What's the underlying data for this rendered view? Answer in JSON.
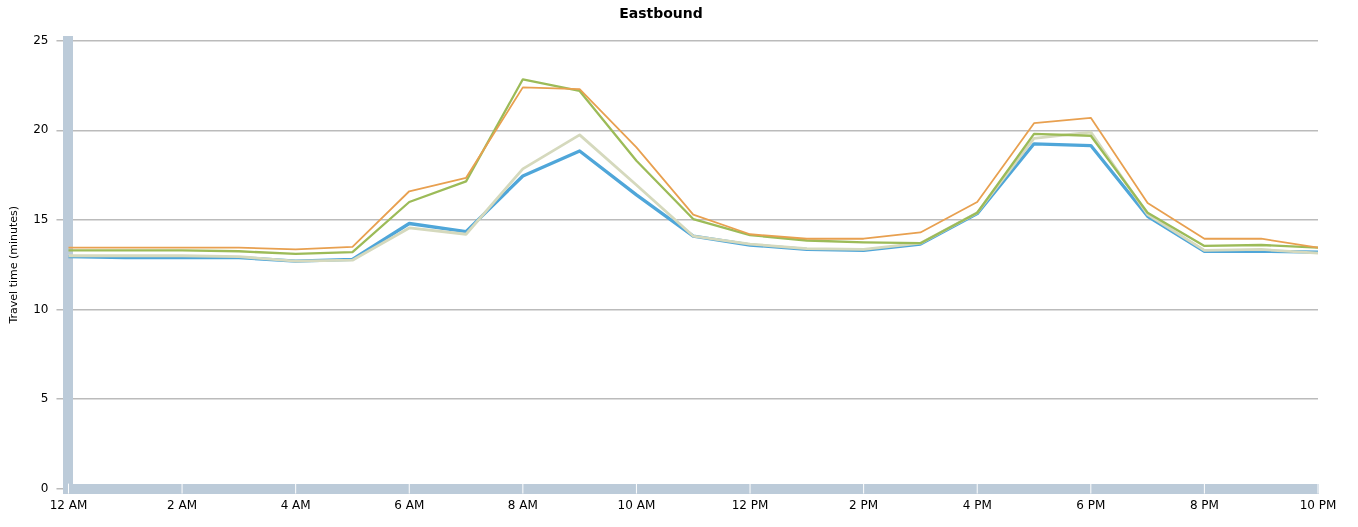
{
  "chart_data": {
    "type": "line",
    "title": "Eastbound",
    "ylabel": "Travel time (minutes)",
    "categories": [
      "12 AM",
      null,
      "2 AM",
      null,
      "4 AM",
      null,
      "6 AM",
      null,
      "8 AM",
      null,
      "10 AM",
      null,
      "12 PM",
      null,
      "2 PM",
      null,
      "4 PM",
      null,
      "6 PM",
      null,
      "8 PM",
      null,
      "10 PM"
    ],
    "series": [
      {
        "color": "#e8a050",
        "values": [
          13.45,
          13.45,
          13.45,
          13.45,
          13.35,
          13.5,
          16.6,
          17.35,
          22.4,
          22.3,
          19.05,
          15.3,
          14.2,
          13.95,
          13.95,
          14.3,
          16.0,
          20.4,
          20.7,
          15.95,
          13.95,
          13.95,
          13.45
        ]
      },
      {
        "color": "#9cbb58",
        "values": [
          13.3,
          13.3,
          13.3,
          13.25,
          13.1,
          13.2,
          16.0,
          17.15,
          22.85,
          22.2,
          18.3,
          15.05,
          14.15,
          13.85,
          13.75,
          13.7,
          15.4,
          19.8,
          19.7,
          15.4,
          13.55,
          13.6,
          13.45
        ]
      },
      {
        "color": "#d5d9bd",
        "values": [
          13.0,
          13.0,
          13.0,
          12.95,
          12.7,
          12.75,
          14.55,
          14.2,
          17.85,
          19.75,
          16.95,
          14.1,
          13.65,
          13.4,
          13.35,
          13.7,
          15.4,
          19.55,
          19.9,
          15.3,
          13.3,
          13.35,
          13.15
        ]
      },
      {
        "color": "#4fa6d9",
        "values": [
          12.95,
          12.9,
          12.9,
          12.9,
          12.7,
          12.8,
          14.8,
          14.35,
          17.45,
          18.85,
          16.4,
          14.1,
          13.6,
          13.35,
          13.3,
          13.65,
          15.35,
          19.25,
          19.15,
          15.2,
          13.25,
          13.25,
          13.2
        ]
      }
    ],
    "ylim": [
      0,
      25
    ],
    "yticks": [
      0,
      5,
      10,
      15,
      20,
      25
    ],
    "grid": "y",
    "legend": false,
    "marker": "none",
    "line_style": "solid"
  }
}
